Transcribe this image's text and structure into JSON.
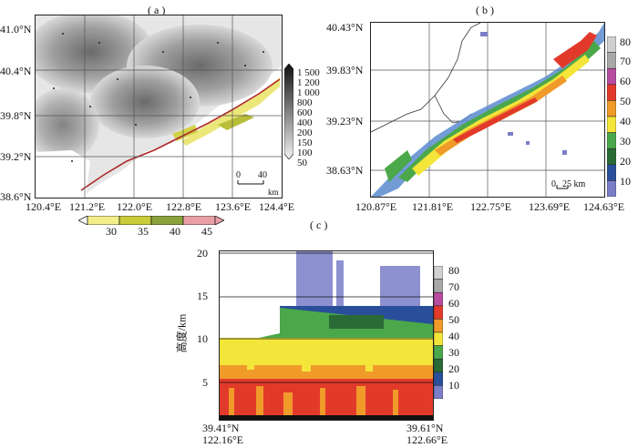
{
  "panel_a": {
    "title": "( a )",
    "lat_labels": [
      "41.0°N",
      "40.4°N",
      "39.8°N",
      "39.2°N",
      "38.6°N"
    ],
    "lon_labels": [
      "120.4°E",
      "121.2°E",
      "122.0°E",
      "122.8°E",
      "123.6°E",
      "124.4°E"
    ],
    "elev_labels": [
      "1 500",
      "1 200",
      "1 000",
      "800",
      "600",
      "400",
      "200",
      "150",
      "100",
      "50"
    ],
    "scale_value": "0",
    "scale_value2": "40",
    "scale_unit": "km",
    "bottom_bar_labels": [
      "30",
      "35",
      "40",
      "45"
    ],
    "bottom_bar_colors": [
      "#f2ee8a",
      "#c9cd3a",
      "#8aa23c",
      "#e8a0a6"
    ]
  },
  "panel_b": {
    "title": "( b )",
    "lat_labels": [
      "40.43°N",
      "39.83°N",
      "39.23°N",
      "38.63°N"
    ],
    "lon_labels": [
      "120.87°E",
      "121.81°E",
      "122.75°E",
      "123.69°E",
      "124.63°E"
    ],
    "cbar_labels": [
      "80",
      "70",
      "60",
      "50",
      "40",
      "30",
      "20",
      "10"
    ],
    "cbar_colors": [
      "#d0d0d0",
      "#a8a8a8",
      "#b84c9f",
      "#e23a2a",
      "#f09a2a",
      "#f3e53a",
      "#4aa84a",
      "#2a6a36",
      "#2a4f9a",
      "#7a7ec8"
    ],
    "scale_value": "0",
    "scale_value2": "25 km"
  },
  "panel_c": {
    "title": "( c )",
    "ylabel": "高度/km",
    "y_ticks": [
      "20",
      "15",
      "10",
      "5"
    ],
    "left_bottom_lat": "39.41°N",
    "left_bottom_lon": "122.16°E",
    "right_bottom_lat": "39.61°N",
    "right_bottom_lon": "122.66°E",
    "cbar_labels": [
      "80",
      "70",
      "60",
      "50",
      "40",
      "30",
      "20",
      "10"
    ],
    "cbar_colors": [
      "#d0d0d0",
      "#a8a8a8",
      "#b84c9f",
      "#e23a2a",
      "#f09a2a",
      "#f3e53a",
      "#4aa84a",
      "#2a6a36",
      "#2a4f9a",
      "#7a7ec8"
    ]
  }
}
